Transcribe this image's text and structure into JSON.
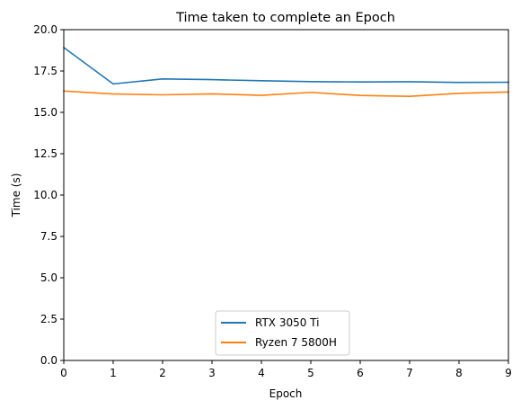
{
  "chart_data": {
    "type": "line",
    "title": "Time taken to complete an Epoch",
    "xlabel": "Epoch",
    "ylabel": "Time (s)",
    "x": [
      0,
      1,
      2,
      3,
      4,
      5,
      6,
      7,
      8,
      9
    ],
    "xlim": [
      0,
      9
    ],
    "ylim": [
      0,
      20
    ],
    "xticks": [
      "0",
      "1",
      "2",
      "3",
      "4",
      "5",
      "6",
      "7",
      "8",
      "9"
    ],
    "yticks": [
      "0.0",
      "2.5",
      "5.0",
      "7.5",
      "10.0",
      "12.5",
      "15.0",
      "17.5",
      "20.0"
    ],
    "grid": false,
    "legend_position": "lower center",
    "series": [
      {
        "name": "RTX 3050 Ti",
        "color": "#1f77b4",
        "values": [
          18.92,
          16.72,
          17.02,
          16.98,
          16.91,
          16.86,
          16.84,
          16.85,
          16.81,
          16.82
        ]
      },
      {
        "name": "Ryzen 7 5800H",
        "color": "#ff7f0e",
        "values": [
          16.29,
          16.11,
          16.06,
          16.12,
          16.03,
          16.21,
          16.02,
          15.97,
          16.15,
          16.23
        ]
      }
    ]
  }
}
